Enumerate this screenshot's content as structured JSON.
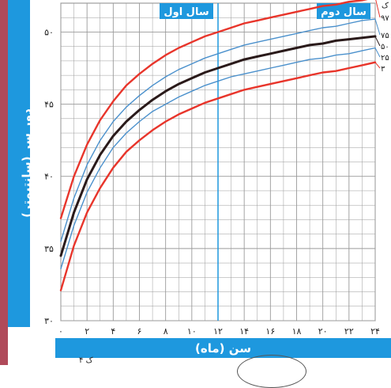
{
  "chart_data": {
    "type": "line",
    "ylabel": "دور سر (سانتیمتر)",
    "xlabel": "سن (ماه)",
    "xlim": [
      0,
      24
    ],
    "ylim": [
      30,
      52
    ],
    "x_ticks": [
      {
        "value": 0,
        "label": "٠"
      },
      {
        "value": 2,
        "label": "٢"
      },
      {
        "value": 4,
        "label": "۴"
      },
      {
        "value": 6,
        "label": "۶"
      },
      {
        "value": 8,
        "label": "٨"
      },
      {
        "value": 10,
        "label": "١٠"
      },
      {
        "value": 12,
        "label": "١٢"
      },
      {
        "value": 14,
        "label": "١۴"
      },
      {
        "value": 16,
        "label": "١۶"
      },
      {
        "value": 18,
        "label": "١٨"
      },
      {
        "value": 20,
        "label": "٢٠"
      },
      {
        "value": 22,
        "label": "٢٢"
      },
      {
        "value": 24,
        "label": "٢۴"
      }
    ],
    "y_ticks": [
      {
        "value": 30,
        "label": "٣٠"
      },
      {
        "value": 35,
        "label": "٣۵"
      },
      {
        "value": 40,
        "label": "۴٠"
      },
      {
        "value": 45,
        "label": "۴۵"
      },
      {
        "value": 50,
        "label": "۵٠"
      }
    ],
    "year_labels": [
      {
        "label": "سال اول",
        "x_start": 0,
        "x_end": 12
      },
      {
        "label": "سال دوم",
        "x_start": 12,
        "x_end": 24
      }
    ],
    "x": [
      0,
      1,
      2,
      3,
      4,
      5,
      6,
      7,
      8,
      9,
      10,
      11,
      12,
      13,
      14,
      15,
      16,
      17,
      18,
      19,
      20,
      21,
      22,
      23,
      24
    ],
    "series": [
      {
        "name": "٣",
        "color": "#e8352b",
        "values": [
          32.1,
          35.2,
          37.5,
          39.2,
          40.6,
          41.7,
          42.5,
          43.2,
          43.8,
          44.3,
          44.7,
          45.1,
          45.4,
          45.7,
          46.0,
          46.2,
          46.4,
          46.6,
          46.8,
          47.0,
          47.2,
          47.3,
          47.5,
          47.7,
          47.9
        ]
      },
      {
        "name": "٢۵",
        "color": "#4a90cc",
        "values": [
          33.6,
          36.6,
          38.9,
          40.6,
          42.0,
          43.0,
          43.8,
          44.5,
          45.0,
          45.5,
          45.9,
          46.3,
          46.6,
          46.9,
          47.1,
          47.3,
          47.5,
          47.7,
          47.9,
          48.1,
          48.2,
          48.4,
          48.5,
          48.7,
          48.9
        ]
      },
      {
        "name": "۵٠",
        "color": "#2a1a1a",
        "values": [
          34.5,
          37.5,
          39.8,
          41.5,
          42.8,
          43.8,
          44.6,
          45.3,
          45.9,
          46.4,
          46.8,
          47.2,
          47.5,
          47.8,
          48.1,
          48.3,
          48.5,
          48.7,
          48.9,
          49.1,
          49.2,
          49.4,
          49.5,
          49.6,
          49.7
        ]
      },
      {
        "name": "٧۵",
        "color": "#4a90cc",
        "values": [
          35.5,
          38.5,
          40.8,
          42.5,
          43.8,
          44.8,
          45.6,
          46.3,
          46.9,
          47.4,
          47.8,
          48.2,
          48.5,
          48.8,
          49.1,
          49.3,
          49.5,
          49.7,
          49.9,
          50.1,
          50.3,
          50.4,
          50.6,
          50.8,
          50.9
        ]
      },
      {
        "name": "٩٧",
        "color": "#e8352b",
        "values": [
          37.1,
          40.0,
          42.2,
          43.9,
          45.2,
          46.3,
          47.1,
          47.8,
          48.4,
          48.9,
          49.3,
          49.7,
          50.0,
          50.3,
          50.6,
          50.8,
          51.0,
          51.2,
          51.4,
          51.6,
          51.8,
          51.9,
          52.1,
          52.2,
          52.4
        ]
      }
    ],
    "legend_title": "ک",
    "legend_placement": "right-edge",
    "grid": true
  },
  "colors": {
    "band_blue": "#1e98de",
    "strip_left": "#b04a5a",
    "grid": "#9a9a9a",
    "year_divider": "#1e98de"
  },
  "bottom_fragment_text": "۴ ک"
}
